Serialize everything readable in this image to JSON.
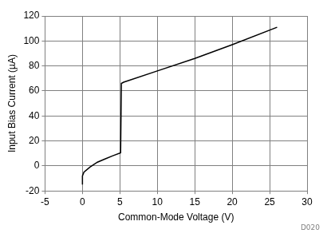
{
  "chart_data": {
    "type": "line",
    "xlabel": "Common-Mode Voltage (V)",
    "ylabel": "Input Bias Current (µA)",
    "annotation": "D020",
    "x": [
      0,
      0,
      0.2,
      1,
      2,
      3,
      4,
      5.1,
      5.2,
      5.5,
      10,
      15,
      20,
      26
    ],
    "values": [
      -15,
      -8,
      -5,
      -1,
      3,
      5.5,
      8,
      10.5,
      66,
      67,
      76,
      86,
      97,
      111
    ],
    "color": "#000000",
    "xlim": [
      -5,
      30
    ],
    "xticks": [
      -5,
      0,
      5,
      10,
      15,
      20,
      25,
      30
    ],
    "ylim": [
      -20,
      120
    ],
    "yticks": [
      -20,
      0,
      20,
      40,
      60,
      80,
      100,
      120
    ],
    "grid": true
  }
}
